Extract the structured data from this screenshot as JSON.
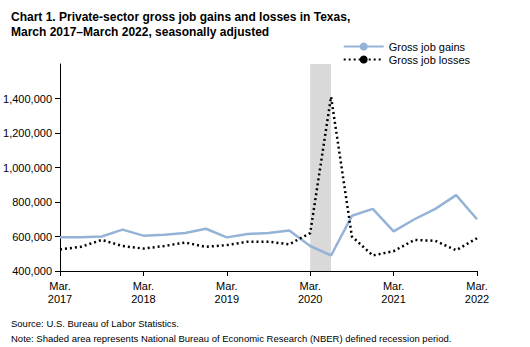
{
  "chart_data": {
    "type": "line",
    "title": "Chart 1. Private-sector gross job gains and losses in Texas,\nMarch 2017–March 2022, seasonally adjusted",
    "notes": [
      "Source: U.S. Bureau of Labor Statistics.",
      "Note: Shaded area represents National Bureau of Economic Research (NBER) defined recession period."
    ],
    "categories": [
      "Mar.\n2017",
      null,
      null,
      null,
      "Mar.\n2018",
      null,
      null,
      null,
      "Mar.\n2019",
      null,
      null,
      null,
      "Mar.\n2020",
      null,
      null,
      null,
      "Mar.\n2021",
      null,
      null,
      null,
      "Mar.\n2022"
    ],
    "shaded": [
      12,
      13
    ],
    "series": [
      {
        "name": "Gross job gains",
        "color": "#95b3d7",
        "line_style": "solid",
        "values": [
          595000,
          595000,
          600000,
          640000,
          605000,
          610000,
          620000,
          645000,
          595000,
          615000,
          620000,
          635000,
          545000,
          490000,
          720000,
          760000,
          630000,
          700000,
          760000,
          840000,
          700000
        ]
      },
      {
        "name": "Gross job losses",
        "color": "#000000",
        "line_style": "dotted",
        "values": [
          525000,
          540000,
          580000,
          545000,
          530000,
          545000,
          565000,
          540000,
          550000,
          570000,
          570000,
          555000,
          620000,
          1410000,
          600000,
          490000,
          515000,
          580000,
          575000,
          520000,
          590000
        ]
      }
    ],
    "ylim": [
      400000,
      1600000
    ],
    "yticks": [
      {
        "value": 400000,
        "label": "400,000"
      },
      {
        "value": 600000,
        "label": "600,000"
      },
      {
        "value": 800000,
        "label": "800,000"
      },
      {
        "value": 1000000,
        "label": "1,000,000"
      },
      {
        "value": 1200000,
        "label": "1,200,000"
      },
      {
        "value": 1400000,
        "label": "1,400,000"
      }
    ],
    "grid": false,
    "legend": "upper right"
  }
}
